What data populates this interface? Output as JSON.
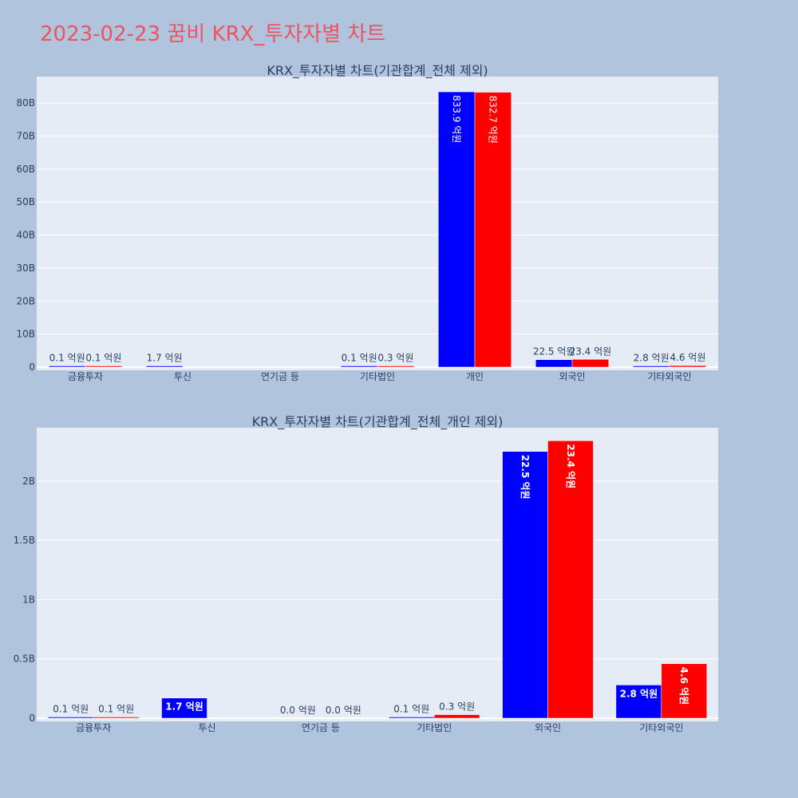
{
  "title": "2023-02-23 꿈비 KRX_투자자별 차트",
  "colors": {
    "buy": "#0000ff",
    "sell": "#ff0000",
    "plot_bg": "#e5ecf6",
    "page_bg": "#b0c4de"
  },
  "chart_data": [
    {
      "type": "bar",
      "title": "KRX_투자자별 차트(기관합계_전체 제외)",
      "categories": [
        "금융투자",
        "투신",
        "연기금 등",
        "기타법인",
        "개인",
        "외국인",
        "기타외국인"
      ],
      "ylim": [
        0,
        88
      ],
      "yticks": [
        0,
        10,
        20,
        30,
        40,
        50,
        60,
        70,
        80
      ],
      "ytick_labels": [
        "0",
        "10B",
        "20B",
        "30B",
        "40B",
        "50B",
        "60B",
        "70B",
        "80B"
      ],
      "series": [
        {
          "color": "#0000ff",
          "values": [
            0.01,
            0.17,
            0,
            0.01,
            83.39,
            2.25,
            0.28
          ],
          "labels": [
            "0.1 억원",
            "1.7 억원",
            "",
            "0.1 억원",
            "833.9 억원",
            "22.5 억원",
            "2.8 억원"
          ]
        },
        {
          "color": "#ff0000",
          "values": [
            0.01,
            0,
            0,
            0.03,
            83.27,
            2.34,
            0.46
          ],
          "labels": [
            "0.1 억원",
            "",
            "",
            "0.3 억원",
            "832.7 억원",
            "23.4 억원",
            "4.6 억원"
          ]
        }
      ],
      "grid": true,
      "legend": "none"
    },
    {
      "type": "bar",
      "title": "KRX_투자자별 차트(기관합계_전체_개인 제외)",
      "categories": [
        "금융투자",
        "투신",
        "연기금 등",
        "기타법인",
        "외국인",
        "기타외국인"
      ],
      "ylim": [
        0,
        2.45
      ],
      "yticks": [
        0,
        0.5,
        1,
        1.5,
        2
      ],
      "ytick_labels": [
        "0",
        "0.5B",
        "1B",
        "1.5B",
        "2B"
      ],
      "series": [
        {
          "color": "#0000ff",
          "values": [
            0.01,
            0.17,
            0,
            0.01,
            2.25,
            0.28
          ],
          "labels": [
            "0.1 억원",
            "1.7 억원",
            "0.0 억원",
            "0.1 억원",
            "22.5 억원",
            "2.8 억원"
          ]
        },
        {
          "color": "#ff0000",
          "values": [
            0.01,
            0,
            0,
            0.03,
            2.34,
            0.46
          ],
          "labels": [
            "0.1 억원",
            "",
            "0.0 억원",
            "0.3 억원",
            "23.4 억원",
            "4.6 억원"
          ]
        }
      ],
      "grid": true,
      "legend": "none"
    }
  ]
}
